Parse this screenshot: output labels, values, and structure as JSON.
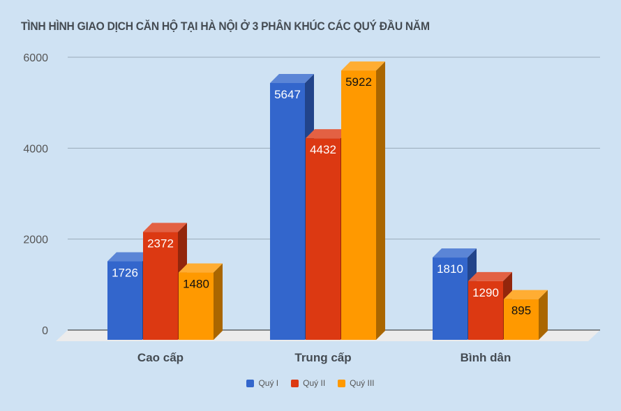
{
  "title": "TÌNH HÌNH GIAO DỊCH CĂN HỘ TẠI HÀ NỘI Ở 3 PHÂN KHÚC CÁC QUÝ ĐẦU NĂM",
  "legend": [
    {
      "label": "Quý I",
      "color": "#3366cc"
    },
    {
      "label": "Quý II",
      "color": "#dc3912"
    },
    {
      "label": "Quý III",
      "color": "#ff9900"
    }
  ],
  "chart_data": {
    "type": "bar",
    "title": "TÌNH HÌNH GIAO DỊCH CĂN HỘ TẠI HÀ NỘI Ở 3 PHÂN KHÚC CÁC QUÝ ĐẦU NĂM",
    "categories": [
      "Cao cấp",
      "Trung cấp",
      "Bình dân"
    ],
    "series": [
      {
        "name": "Quý I",
        "values": [
          1726,
          5647,
          1810
        ]
      },
      {
        "name": "Quý II",
        "values": [
          2372,
          4432,
          1290
        ]
      },
      {
        "name": "Quý III",
        "values": [
          1480,
          5922,
          895
        ]
      }
    ],
    "xlabel": "",
    "ylabel": "",
    "ylim": [
      0,
      6000
    ],
    "yticks": [
      0,
      2000,
      4000,
      6000
    ],
    "grid": true,
    "legend_position": "bottom",
    "style": "3d"
  }
}
